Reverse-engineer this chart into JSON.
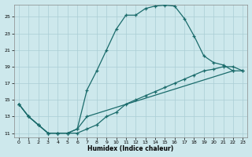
{
  "xlabel": "Humidex (Indice chaleur)",
  "bg_color": "#cde8ec",
  "grid_color": "#aacdd4",
  "line_color": "#1a6b6b",
  "xlim_min": -0.5,
  "xlim_max": 23.5,
  "ylim_min": 10.5,
  "ylim_max": 26.5,
  "yticks": [
    11,
    13,
    15,
    17,
    19,
    21,
    23,
    25
  ],
  "xticks": [
    0,
    1,
    2,
    3,
    4,
    5,
    6,
    7,
    8,
    9,
    10,
    11,
    12,
    13,
    14,
    15,
    16,
    17,
    18,
    19,
    20,
    21,
    22,
    23
  ],
  "upper_x": [
    0,
    1,
    2,
    3,
    4,
    5,
    6,
    7,
    8,
    9,
    10,
    11,
    12,
    13,
    14,
    15,
    16,
    17,
    18,
    19,
    20,
    21,
    22
  ],
  "upper_y": [
    14.5,
    13.0,
    12.0,
    11.0,
    11.0,
    11.0,
    11.5,
    16.2,
    18.5,
    21.0,
    23.5,
    25.2,
    25.2,
    26.0,
    26.3,
    26.4,
    26.3,
    24.8,
    22.7,
    20.3,
    19.5,
    19.2,
    18.5
  ],
  "lower_x": [
    0,
    1,
    2,
    3,
    4,
    5,
    6,
    7,
    8,
    9,
    10,
    11,
    12,
    13,
    14,
    15,
    16,
    17,
    18,
    19,
    20,
    21,
    22,
    23
  ],
  "lower_y": [
    14.5,
    13.0,
    12.0,
    11.0,
    11.0,
    11.0,
    11.0,
    11.5,
    12.0,
    13.0,
    13.5,
    14.5,
    15.0,
    15.5,
    16.0,
    16.5,
    17.0,
    17.5,
    18.0,
    18.5,
    18.7,
    19.0,
    19.0,
    18.5
  ],
  "mid_x": [
    0,
    1,
    2,
    3,
    4,
    5,
    6,
    7,
    22,
    23
  ],
  "mid_y": [
    14.5,
    13.0,
    12.0,
    11.0,
    11.0,
    11.0,
    11.5,
    13.0,
    18.5,
    18.5
  ]
}
